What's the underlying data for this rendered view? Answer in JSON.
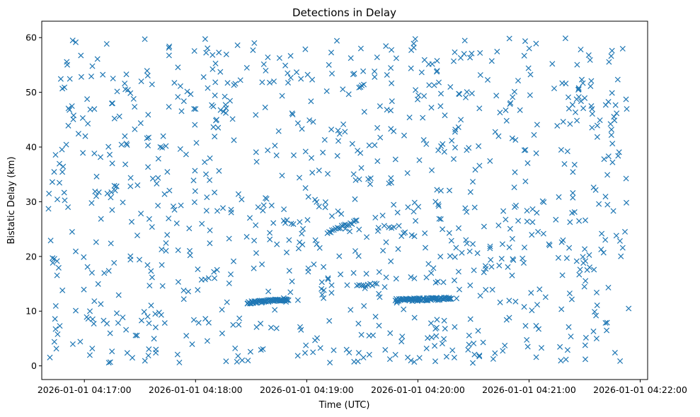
{
  "chart_data": {
    "type": "scatter",
    "title": "Detections in Delay",
    "xlabel": "Time (UTC)",
    "ylabel": "Bistatic Delay (km)",
    "xlim": [
      "2026-01-01 04:16:37",
      "2026-01-01 04:22:04"
    ],
    "ylim": [
      -2.5,
      63
    ],
    "x_ticks": [
      "2026-01-01 04:17:00",
      "2026-01-01 04:18:00",
      "2026-01-01 04:19:00",
      "2026-01-01 04:20:00",
      "2026-01-01 04:21:00",
      "2026-01-01 04:22:00"
    ],
    "y_ticks": [
      0,
      10,
      20,
      30,
      40,
      50,
      60
    ],
    "x_range": [
      "2026-01-01 04:16:40",
      "2026-01-01 04:21:54"
    ],
    "y_range": [
      0.5,
      60
    ],
    "marker": "x",
    "series_color": "#1f77b4",
    "clutter_points_approx": 950,
    "tracks": [
      {
        "x_start": "2026-01-01 04:18:28",
        "x_end": "2026-01-01 04:18:50",
        "y_start": 11.5,
        "y_end": 12.2,
        "points": 60
      },
      {
        "x_start": "2026-01-01 04:19:12",
        "x_end": "2026-01-01 04:19:27",
        "y_start": 24.5,
        "y_end": 26.5,
        "points": 18
      },
      {
        "x_start": "2026-01-01 04:19:27",
        "x_end": "2026-01-01 04:19:38",
        "y_start": 14.5,
        "y_end": 15.0,
        "points": 10
      },
      {
        "x_start": "2026-01-01 04:19:48",
        "x_end": "2026-01-01 04:20:18",
        "y_start": 12.0,
        "y_end": 12.3,
        "points": 80
      }
    ]
  }
}
